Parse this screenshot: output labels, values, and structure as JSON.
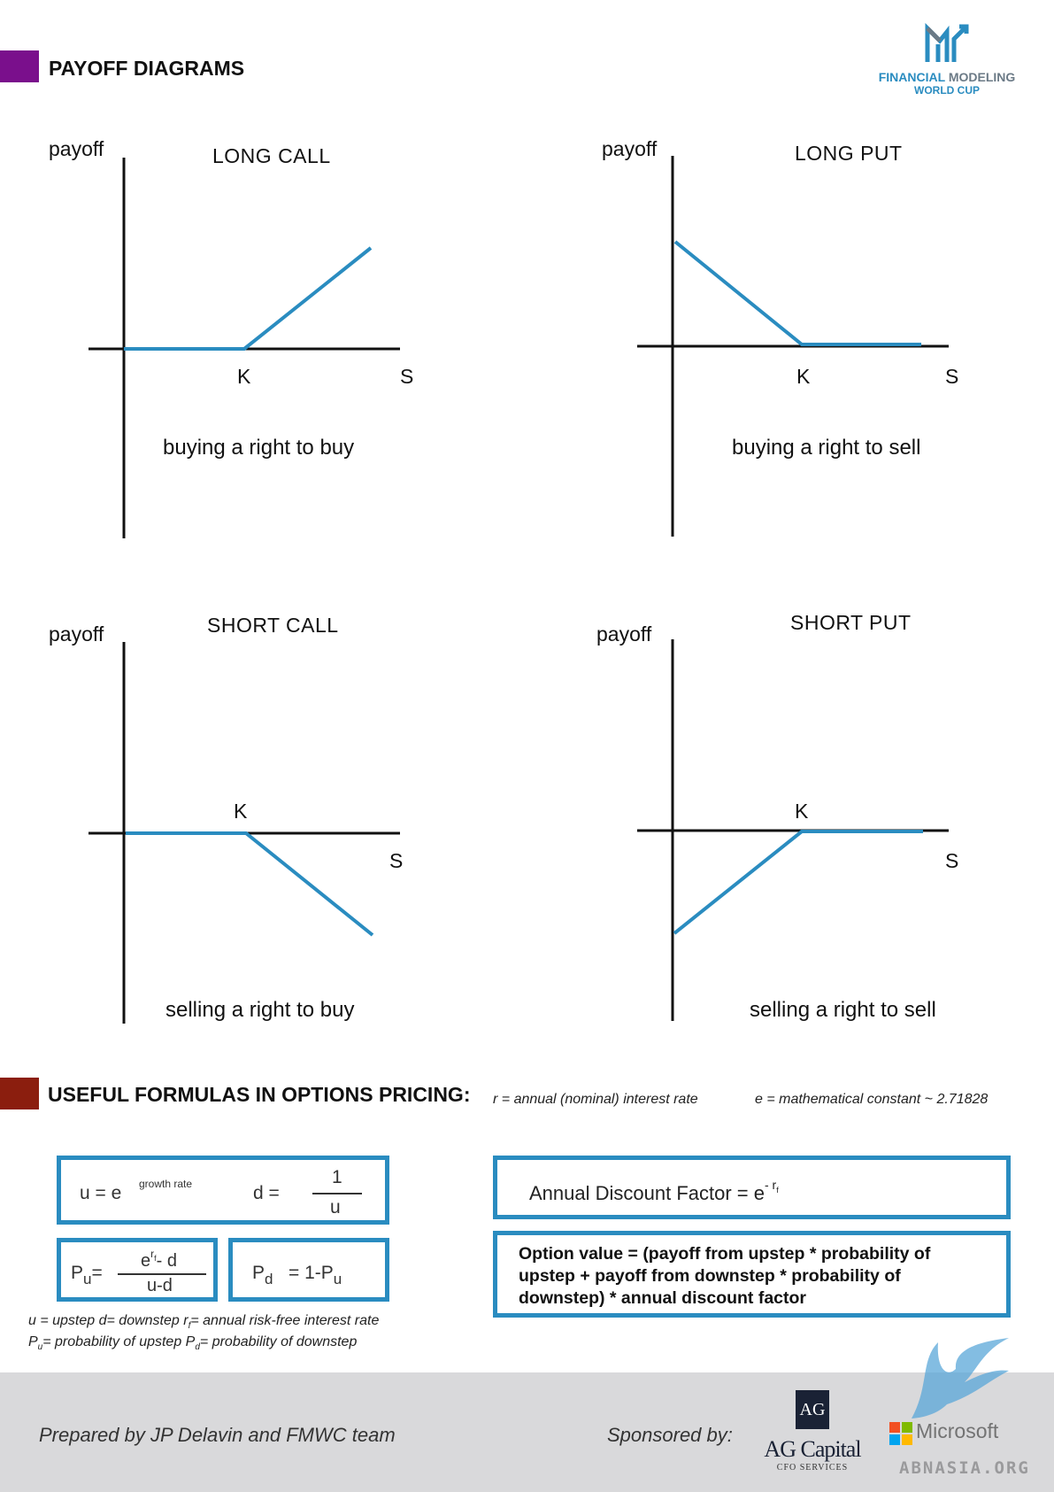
{
  "header": {
    "title": "PAYOFF DIAGRAMS",
    "bar_color": "#7a0f8c",
    "logo_line1_a": "FINANCIAL",
    "logo_line1_b": "MODELING",
    "logo_line2": "WORLD CUP"
  },
  "diagrams": [
    {
      "title": "LONG CALL",
      "y_label": "payoff",
      "strike_label": "K",
      "x_label": "S",
      "description": "buying a right to buy"
    },
    {
      "title": "LONG PUT",
      "y_label": "payoff",
      "strike_label": "K",
      "x_label": "S",
      "description": "buying a right to sell"
    },
    {
      "title": "SHORT CALL",
      "y_label": "payoff",
      "strike_label": "K",
      "x_label": "S",
      "description": "selling a right to buy"
    },
    {
      "title": "SHORT PUT",
      "y_label": "payoff",
      "strike_label": "K",
      "x_label": "S",
      "description": "selling a right to sell"
    }
  ],
  "formulas_section": {
    "title": "USEFUL FORMULAS IN OPTIONS PRICING:",
    "bar_color": "#8b1e0e",
    "note_r": "r = annual (nominal) interest rate",
    "note_e": "e = mathematical constant ~ 2.71828",
    "u_lhs": "u  =  e",
    "u_exp": "growth rate",
    "d_lhs": "d    =",
    "d_num": "1",
    "d_den": "u",
    "pu_lhs": "P",
    "pu_sub": "u",
    "pu_eq": "=",
    "pu_num": "e",
    "pu_num_exp": "r",
    "pu_num_exp_sub": "f",
    "pu_num_rest": "- d",
    "pu_den": "u-d",
    "pd_lhs": "P",
    "pd_sub": "d",
    "pd_rhs": "=     1-P",
    "pd_rhs_sub": "u",
    "legend_line1": "u = upstep    d= downstep   r",
    "legend_line1_sub": "f",
    "legend_line1_rest": "= annual risk-free interest rate",
    "legend_line2_p": "P",
    "legend_line2_sub": "u",
    "legend_line2_rest": "= probability of upstep    P",
    "legend_line2_sub2": "d",
    "legend_line2_rest2": "= probability of downstep",
    "discount_text": "Annual Discount Factor = e",
    "discount_exp": "- r",
    "discount_exp_sub": "f",
    "option_value": "Option value = (payoff from upstep * probability of upstep + payoff from downstep * probability of downstep) * annual discount factor",
    "box_color": "#2a8cc0"
  },
  "footer": {
    "prepared_by": "Prepared by JP Delavin and FMWC team",
    "sponsored_by": "Sponsored by:",
    "ag_monogram": "AG",
    "ag_name": "AG Capital",
    "ag_sub": "CFO SERVICES",
    "microsoft": "Microsoft",
    "watermark": "ABNASIA.ORG"
  },
  "colors": {
    "payoff_line": "#2a8cc0",
    "axis": "#111111"
  }
}
